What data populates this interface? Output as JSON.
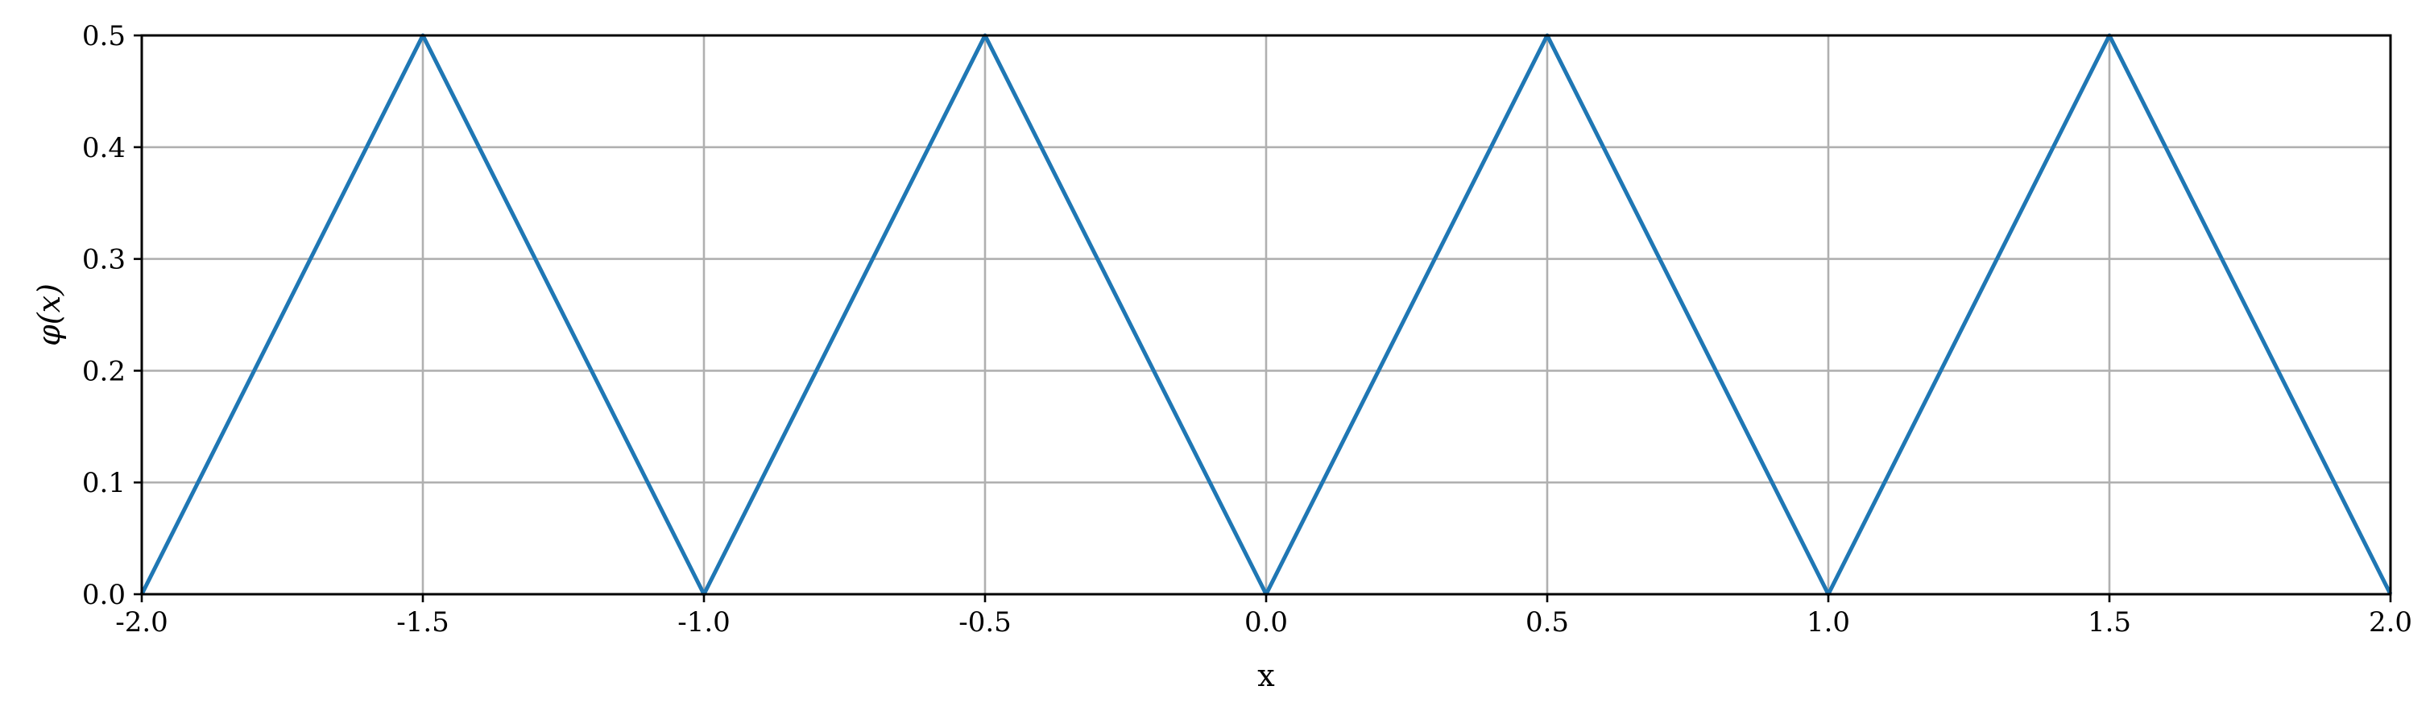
{
  "chart_data": {
    "type": "line",
    "title": "",
    "xlabel": "x",
    "ylabel": "φ(x)",
    "xlim": [
      -2.0,
      2.0
    ],
    "ylim": [
      0.0,
      0.5
    ],
    "x_ticks": [
      "-2.0",
      "-1.5",
      "-1.0",
      "-0.5",
      "0.0",
      "0.5",
      "1.0",
      "1.5",
      "2.0"
    ],
    "y_ticks": [
      "0.0",
      "0.1",
      "0.2",
      "0.3",
      "0.4",
      "0.5"
    ],
    "grid": true,
    "series": [
      {
        "color": "#1f77b4",
        "x": [
          -2.0,
          -1.5,
          -1.0,
          -0.5,
          0.0,
          0.5,
          1.0,
          1.5,
          2.0
        ],
        "y": [
          0.0,
          0.5,
          0.0,
          0.5,
          0.0,
          0.5,
          0.0,
          0.5,
          0.0
        ]
      }
    ]
  }
}
